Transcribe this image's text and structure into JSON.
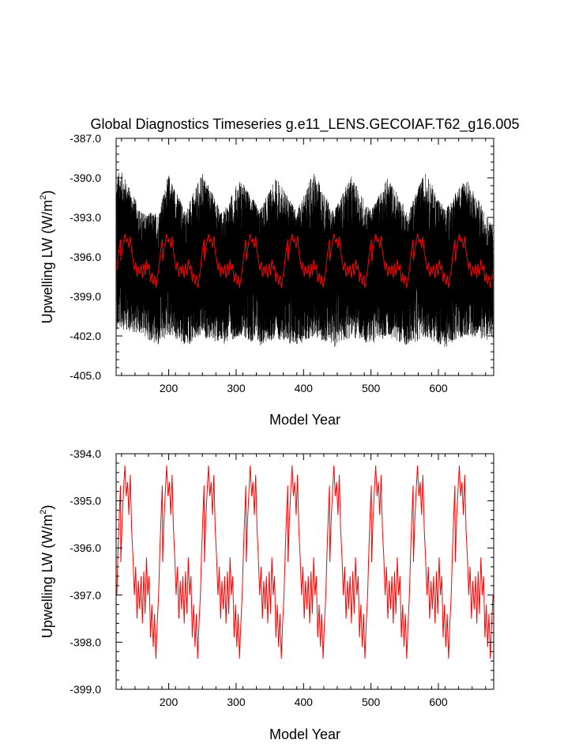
{
  "title": "Global Diagnostics Timeseries g.e11_LENS.GECOIAF.T62_g16.005",
  "colors": {
    "raw": "#000000",
    "smooth": "#ff0000",
    "axis": "#000000"
  },
  "chart_data": [
    {
      "type": "line",
      "xlabel": "Model Year",
      "ylabel": "Upwelling LW (W/m",
      "ylabel_sup": "2",
      "ylabel_end": ")",
      "xlim": [
        122,
        682
      ],
      "ylim": [
        -405.0,
        -387.0
      ],
      "xticks": [
        200,
        300,
        400,
        500,
        600
      ],
      "xtick_labels": [
        "200",
        "300",
        "400",
        "500",
        "600"
      ],
      "yticks": [
        -405.0,
        -402.0,
        -399.0,
        -396.0,
        -393.0,
        -390.0,
        -387.0
      ],
      "ytick_labels": [
        "-405.0",
        "-402.0",
        "-399.0",
        "-396.0",
        "-393.0",
        "-390.0",
        "-387.0"
      ],
      "cycle_years": 62,
      "series": [
        {
          "style": "raw-monthly",
          "envelope_high": [
            [
              130,
              -389.5
            ],
            [
              160,
              -392.6
            ],
            [
              185,
              -392.6
            ],
            [
              200,
              -389.7
            ],
            [
              225,
              -392.5
            ],
            [
              250,
              -389.6
            ],
            [
              280,
              -392.7
            ],
            [
              305,
              -390.0
            ],
            [
              335,
              -392.4
            ],
            [
              360,
              -389.9
            ],
            [
              390,
              -392.5
            ],
            [
              415,
              -389.5
            ],
            [
              445,
              -392.6
            ],
            [
              470,
              -389.8
            ],
            [
              500,
              -392.5
            ],
            [
              525,
              -389.9
            ],
            [
              555,
              -392.6
            ],
            [
              580,
              -389.5
            ],
            [
              610,
              -392.4
            ],
            [
              640,
              -389.9
            ],
            [
              680,
              -393.5
            ]
          ],
          "envelope_low": [
            [
              130,
              -401.5
            ],
            [
              160,
              -401.9
            ],
            [
              185,
              -402.9
            ],
            [
              200,
              -402.0
            ],
            [
              225,
              -402.8
            ],
            [
              250,
              -402.1
            ],
            [
              280,
              -402.7
            ],
            [
              305,
              -402.0
            ],
            [
              335,
              -402.8
            ],
            [
              360,
              -402.2
            ],
            [
              390,
              -402.8
            ],
            [
              415,
              -402.0
            ],
            [
              445,
              -402.9
            ],
            [
              470,
              -402.1
            ],
            [
              500,
              -402.7
            ],
            [
              525,
              -402.0
            ],
            [
              555,
              -402.8
            ],
            [
              580,
              -402.1
            ],
            [
              610,
              -402.9
            ],
            [
              640,
              -402.0
            ],
            [
              680,
              -402.4
            ]
          ]
        },
        {
          "style": "smoothed",
          "cycle_profile": [
            [
              0,
              -396.3
            ],
            [
              2,
              -395.4
            ],
            [
              4,
              -394.8
            ],
            [
              6,
              -394.25
            ],
            [
              8,
              -394.9
            ],
            [
              10,
              -394.6
            ],
            [
              12,
              -395.3
            ],
            [
              14,
              -394.45
            ],
            [
              16,
              -395.6
            ],
            [
              18,
              -396.2
            ],
            [
              20,
              -397.0
            ],
            [
              22,
              -396.4
            ],
            [
              24,
              -397.5
            ],
            [
              26,
              -396.7
            ],
            [
              28,
              -397.3
            ],
            [
              30,
              -396.6
            ],
            [
              32,
              -397.6
            ],
            [
              34,
              -396.5
            ],
            [
              36,
              -397.4
            ],
            [
              38,
              -396.2
            ],
            [
              40,
              -397.0
            ],
            [
              42,
              -396.6
            ],
            [
              44,
              -397.9
            ],
            [
              46,
              -397.2
            ],
            [
              48,
              -398.1
            ],
            [
              50,
              -397.4
            ],
            [
              52,
              -398.35
            ],
            [
              54,
              -397.6
            ],
            [
              56,
              -397.0
            ],
            [
              58,
              -396.0
            ],
            [
              60,
              -395.2
            ],
            [
              62,
              -394.5
            ]
          ],
          "start_year": 123,
          "end_year": 681,
          "phase_origin_year": 129
        }
      ]
    },
    {
      "type": "line",
      "xlabel": "Model Year",
      "ylabel": "Upwelling LW (W/m",
      "ylabel_sup": "2",
      "ylabel_end": ")",
      "xlim": [
        122,
        682
      ],
      "ylim": [
        -399.0,
        -394.0
      ],
      "xticks": [
        200,
        300,
        400,
        500,
        600
      ],
      "xtick_labels": [
        "200",
        "300",
        "400",
        "500",
        "600"
      ],
      "yticks": [
        -399.0,
        -398.0,
        -397.0,
        -396.0,
        -395.0,
        -394.0
      ],
      "ytick_labels": [
        "-399.0",
        "-398.0",
        "-397.0",
        "-396.0",
        "-395.0",
        "-394.0"
      ],
      "series": [
        {
          "style": "smoothed",
          "same_as": "panel-1-smoothed"
        }
      ]
    }
  ]
}
